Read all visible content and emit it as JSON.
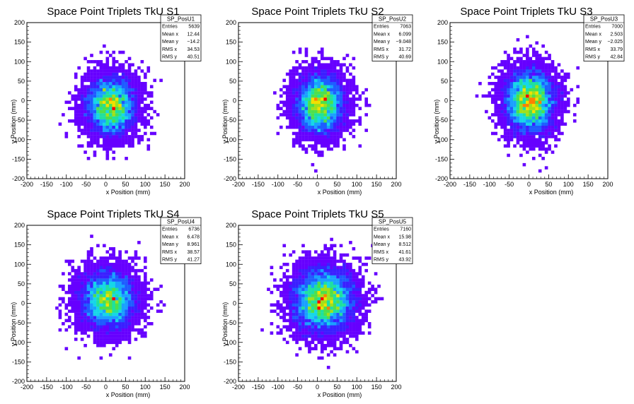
{
  "chart_data": [
    {
      "type": "heatmap",
      "title": "Space Point Triplets TkU S1",
      "xlabel": "x Position (mm)",
      "ylabel": "y Position (mm)",
      "xlim": [
        -200,
        200
      ],
      "ylim": [
        -200,
        200
      ],
      "x_ticks": [
        -200,
        -150,
        -100,
        -50,
        0,
        50,
        100,
        150,
        200
      ],
      "y_ticks": [
        -200,
        -150,
        -100,
        -50,
        0,
        50,
        100,
        150,
        200
      ],
      "stats": {
        "name": "SP_PosU1",
        "rows": [
          [
            "Entries",
            "5639"
          ],
          [
            "Mean x",
            "12.44"
          ],
          [
            "Mean y",
            "−14.2"
          ],
          [
            "RMS x",
            "34.53"
          ],
          [
            "RMS y",
            "40.51"
          ]
        ]
      },
      "series": [
        {
          "entries": 5639,
          "mean_x": 12.44,
          "mean_y": -14.2,
          "rms_x": 34.53,
          "rms_y": 40.51
        }
      ]
    },
    {
      "type": "heatmap",
      "title": "Space Point Triplets TkU S2",
      "xlabel": "x Position (mm)",
      "ylabel": "y Position (mm)",
      "xlim": [
        -200,
        200
      ],
      "ylim": [
        -200,
        200
      ],
      "x_ticks": [
        -200,
        -150,
        -100,
        -50,
        0,
        50,
        100,
        150,
        200
      ],
      "y_ticks": [
        -200,
        -150,
        -100,
        -50,
        0,
        50,
        100,
        150,
        200
      ],
      "stats": {
        "name": "SP_PosU2",
        "rows": [
          [
            "Entries",
            "7063"
          ],
          [
            "Mean x",
            "6.099"
          ],
          [
            "Mean y",
            "−9.048"
          ],
          [
            "RMS x",
            "31.72"
          ],
          [
            "RMS y",
            "40.69"
          ]
        ]
      },
      "series": [
        {
          "entries": 7063,
          "mean_x": 6.099,
          "mean_y": -9.048,
          "rms_x": 31.72,
          "rms_y": 40.69
        }
      ]
    },
    {
      "type": "heatmap",
      "title": "Space Point Triplets TkU S3",
      "xlabel": "x Position (mm)",
      "ylabel": "y Position (mm)",
      "xlim": [
        -200,
        200
      ],
      "ylim": [
        -200,
        200
      ],
      "x_ticks": [
        -200,
        -150,
        -100,
        -50,
        0,
        50,
        100,
        150,
        200
      ],
      "y_ticks": [
        -200,
        -150,
        -100,
        -50,
        0,
        50,
        100,
        150,
        200
      ],
      "stats": {
        "name": "SP_PosU3",
        "rows": [
          [
            "Entries",
            "7000"
          ],
          [
            "Mean x",
            "2.503"
          ],
          [
            "Mean y",
            "−2.025"
          ],
          [
            "RMS x",
            "33.79"
          ],
          [
            "RMS y",
            "42.84"
          ]
        ]
      },
      "series": [
        {
          "entries": 7000,
          "mean_x": 2.503,
          "mean_y": -2.025,
          "rms_x": 33.79,
          "rms_y": 42.84
        }
      ]
    },
    {
      "type": "heatmap",
      "title": "Space Point Triplets TkU S4",
      "xlabel": "x Position (mm)",
      "ylabel": "y Position (mm)",
      "xlim": [
        -200,
        200
      ],
      "ylim": [
        -200,
        200
      ],
      "x_ticks": [
        -200,
        -150,
        -100,
        -50,
        0,
        50,
        100,
        150,
        200
      ],
      "y_ticks": [
        -200,
        -150,
        -100,
        -50,
        0,
        50,
        100,
        150,
        200
      ],
      "stats": {
        "name": "SP_PosU4",
        "rows": [
          [
            "Entries",
            "6736"
          ],
          [
            "Mean x",
            "6.478"
          ],
          [
            "Mean y",
            "8.961"
          ],
          [
            "RMS x",
            "38.57"
          ],
          [
            "RMS y",
            "41.27"
          ]
        ]
      },
      "series": [
        {
          "entries": 6736,
          "mean_x": 6.478,
          "mean_y": 8.961,
          "rms_x": 38.57,
          "rms_y": 41.27
        }
      ]
    },
    {
      "type": "heatmap",
      "title": "Space Point Triplets TkU S5",
      "xlabel": "x Position (mm)",
      "ylabel": "y Position (mm)",
      "xlim": [
        -200,
        200
      ],
      "ylim": [
        -200,
        200
      ],
      "x_ticks": [
        -200,
        -150,
        -100,
        -50,
        0,
        50,
        100,
        150,
        200
      ],
      "y_ticks": [
        -200,
        -150,
        -100,
        -50,
        0,
        50,
        100,
        150,
        200
      ],
      "stats": {
        "name": "SP_PosU5",
        "rows": [
          [
            "Entries",
            "7160"
          ],
          [
            "Mean x",
            "15.98"
          ],
          [
            "Mean y",
            "8.512"
          ],
          [
            "RMS x",
            "41.61"
          ],
          [
            "RMS y",
            "43.92"
          ]
        ]
      },
      "series": [
        {
          "entries": 7160,
          "mean_x": 15.98,
          "mean_y": 8.512,
          "rms_x": 41.61,
          "rms_y": 43.92
        }
      ]
    }
  ],
  "palette": [
    "#6600ff",
    "#3b1fff",
    "#1e5cff",
    "#1aa0ff",
    "#16d6e8",
    "#1ee0a0",
    "#4ce04c",
    "#a0e01a",
    "#f0e000",
    "#ff8000",
    "#ff0000"
  ]
}
